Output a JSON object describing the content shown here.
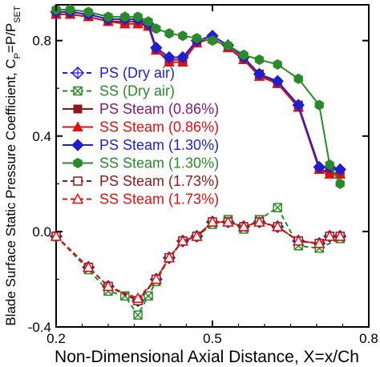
{
  "chart_data": {
    "type": "line",
    "title": "",
    "xlabel": "Non-Dimensional Axial Distance, X=x/Ch",
    "ylabel": {
      "prefix": "Blade Surface Static Pressure Coefficient, C",
      "sub1": "P",
      "middle": "=P/P",
      "sub2": "SET"
    },
    "xlim": [
      0.2,
      0.8
    ],
    "ylim": [
      -0.4,
      0.95
    ],
    "xticks": [
      0.2,
      0.5,
      0.8
    ],
    "xtick_labels": [
      "0.2",
      "0.5",
      "0.8"
    ],
    "yticks": [
      -0.4,
      0.0,
      0.4,
      0.8
    ],
    "ytick_labels": [
      "-0.4",
      "0.0",
      "0.4",
      "0.8"
    ],
    "grid": false,
    "legend_position": "left-center",
    "x": [
      0.2,
      0.227,
      0.262,
      0.3,
      0.332,
      0.357,
      0.377,
      0.392,
      0.417,
      0.443,
      0.47,
      0.5,
      0.53,
      0.56,
      0.59,
      0.625,
      0.665,
      0.705,
      0.725,
      0.745,
      0.77
    ],
    "series": [
      {
        "name": "PS (Dry air)",
        "color": "#1f1fd0",
        "line": "dashed",
        "marker": "diamond-cross-open",
        "x": [
          0.2,
          0.262,
          0.3,
          0.357,
          0.392,
          0.417,
          0.443,
          0.47,
          0.5,
          0.53,
          0.56,
          0.59,
          0.625,
          0.665,
          0.705,
          0.725,
          0.745
        ],
        "values": [
          -0.02,
          -0.15,
          -0.23,
          -0.29,
          -0.2,
          -0.11,
          -0.04,
          -0.02,
          0.04,
          0.04,
          0.02,
          0.04,
          0.02,
          -0.04,
          -0.05,
          -0.02,
          -0.02
        ]
      },
      {
        "name": "SS (Dry air)",
        "color": "#2a8a2a",
        "line": "dashed",
        "marker": "square-x-open",
        "x": [
          0.2,
          0.262,
          0.3,
          0.332,
          0.357,
          0.377,
          0.392,
          0.417,
          0.443,
          0.47,
          0.5,
          0.53,
          0.56,
          0.59,
          0.625,
          0.665,
          0.705,
          0.745
        ],
        "values": [
          -0.02,
          -0.16,
          -0.25,
          -0.27,
          -0.35,
          -0.27,
          -0.21,
          -0.11,
          -0.04,
          -0.02,
          0.03,
          0.05,
          0.01,
          0.05,
          0.1,
          -0.06,
          -0.07,
          -0.03
        ]
      },
      {
        "name": "PS Steam (0.86%)",
        "color": "#8b1a1a",
        "line": "solid",
        "marker": "square-filled",
        "x": [
          0.2,
          0.227,
          0.262,
          0.3,
          0.332,
          0.357,
          0.377,
          0.392,
          0.417,
          0.443,
          0.47,
          0.5,
          0.53,
          0.56,
          0.59,
          0.625,
          0.665,
          0.705,
          0.725,
          0.745
        ],
        "values": [
          0.91,
          0.91,
          0.9,
          0.88,
          0.88,
          0.88,
          0.86,
          0.76,
          0.72,
          0.72,
          0.79,
          0.81,
          0.77,
          0.72,
          0.66,
          0.62,
          0.53,
          0.26,
          0.25,
          0.24
        ]
      },
      {
        "name": "SS Steam (0.86%)",
        "color": "#e01010",
        "line": "solid",
        "marker": "triangle-filled",
        "x": [
          0.2,
          0.227,
          0.262,
          0.3,
          0.332,
          0.357,
          0.377,
          0.392,
          0.417,
          0.443,
          0.47,
          0.5,
          0.53,
          0.56,
          0.59,
          0.625,
          0.665,
          0.705,
          0.725,
          0.745
        ],
        "values": [
          0.91,
          0.91,
          0.9,
          0.88,
          0.87,
          0.87,
          0.86,
          0.76,
          0.71,
          0.71,
          0.79,
          0.81,
          0.77,
          0.72,
          0.65,
          0.62,
          0.52,
          0.26,
          0.24,
          0.24
        ]
      },
      {
        "name": "PS Steam (1.30%)",
        "color": "#1f1fd0",
        "line": "solid",
        "marker": "diamond-filled",
        "x": [
          0.2,
          0.227,
          0.262,
          0.3,
          0.332,
          0.357,
          0.377,
          0.392,
          0.417,
          0.443,
          0.47,
          0.5,
          0.53,
          0.56,
          0.59,
          0.625,
          0.665,
          0.705,
          0.725,
          0.745
        ],
        "values": [
          0.92,
          0.92,
          0.91,
          0.89,
          0.89,
          0.89,
          0.87,
          0.77,
          0.73,
          0.73,
          0.8,
          0.82,
          0.78,
          0.73,
          0.66,
          0.63,
          0.53,
          0.27,
          0.27,
          0.26
        ]
      },
      {
        "name": "SS Steam (1.30%)",
        "color": "#2a8a2a",
        "line": "solid",
        "marker": "hexagon-filled",
        "x": [
          0.2,
          0.227,
          0.262,
          0.3,
          0.332,
          0.357,
          0.377,
          0.392,
          0.417,
          0.443,
          0.47,
          0.5,
          0.53,
          0.56,
          0.59,
          0.625,
          0.665,
          0.705,
          0.725,
          0.745
        ],
        "values": [
          0.93,
          0.93,
          0.92,
          0.9,
          0.9,
          0.9,
          0.88,
          0.85,
          0.83,
          0.82,
          0.81,
          0.8,
          0.78,
          0.74,
          0.72,
          0.7,
          0.64,
          0.53,
          0.28,
          0.2
        ]
      },
      {
        "name": "PS Steam (1.73%)",
        "color": "#8b1a1a",
        "line": "dashed",
        "marker": "square-open",
        "x": [
          0.2,
          0.262,
          0.3,
          0.357,
          0.392,
          0.417,
          0.443,
          0.47,
          0.5,
          0.53,
          0.56,
          0.59,
          0.625,
          0.665,
          0.705,
          0.725,
          0.745
        ],
        "values": [
          -0.02,
          -0.15,
          -0.23,
          -0.29,
          -0.2,
          -0.11,
          -0.04,
          -0.02,
          0.04,
          0.04,
          0.02,
          0.04,
          0.02,
          -0.04,
          -0.05,
          -0.02,
          -0.02
        ]
      },
      {
        "name": "SS Steam (1.73%)",
        "color": "#e01010",
        "line": "dashed",
        "marker": "triangle-open",
        "x": [
          0.2,
          0.262,
          0.3,
          0.357,
          0.392,
          0.417,
          0.443,
          0.47,
          0.5,
          0.53,
          0.56,
          0.59,
          0.625,
          0.665,
          0.705,
          0.725,
          0.745
        ],
        "values": [
          -0.02,
          -0.15,
          -0.23,
          -0.28,
          -0.2,
          -0.11,
          -0.04,
          -0.02,
          0.04,
          0.04,
          0.02,
          0.04,
          0.02,
          -0.04,
          -0.05,
          -0.02,
          -0.02
        ]
      }
    ],
    "legend_text_colors": [
      "#1f1fd0",
      "#2a8a2a",
      "#7a1a7a",
      "#e01010",
      "#1f1fd0",
      "#2a8a2a",
      "#8b1a1a",
      "#e01010"
    ]
  }
}
